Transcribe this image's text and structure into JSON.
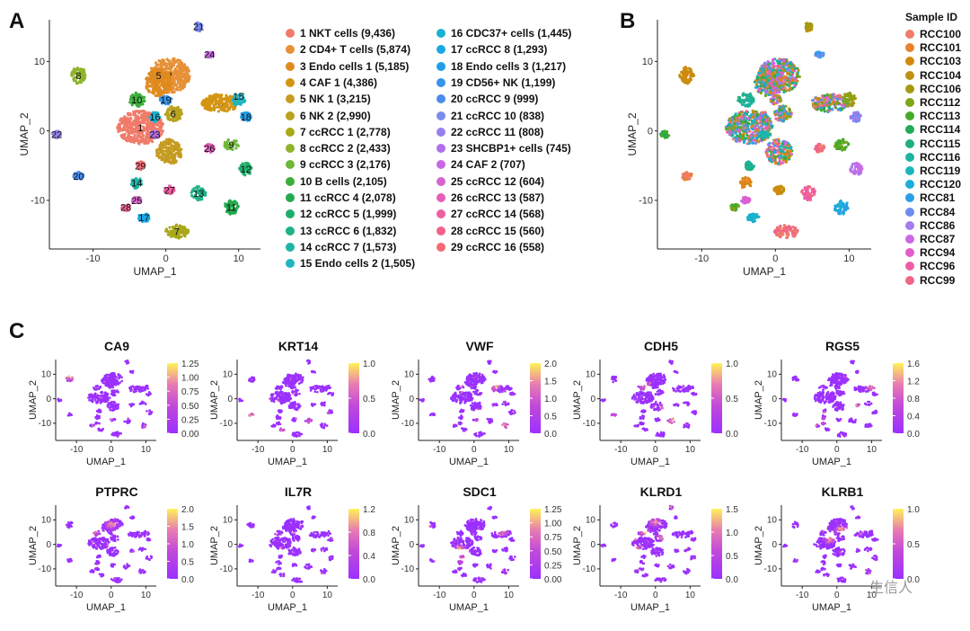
{
  "panels": {
    "a": {
      "letter": "A",
      "xlabel": "UMAP_1",
      "ylabel": "UMAP_2"
    },
    "b": {
      "letter": "B",
      "xlabel": "UMAP_1",
      "ylabel": "UMAP_2",
      "legend_title": "Sample ID"
    },
    "c": {
      "letter": "C"
    }
  },
  "chart_data": [
    {
      "type": "scatter",
      "title": "",
      "xlabel": "UMAP_1",
      "ylabel": "UMAP_2",
      "xlim": [
        -16,
        13
      ],
      "ylim": [
        -17,
        16
      ],
      "xticks": [
        "-10",
        "0",
        "10"
      ],
      "yticks": [
        "10",
        "0",
        "-10"
      ],
      "clusters": [
        {
          "id": "1",
          "label": "1 NKT cells (9,436)",
          "color": "#f07b6a",
          "x": -3.5,
          "y": 0.5
        },
        {
          "id": "2",
          "label": "2 CD4+ T cells (5,874)",
          "color": "#e69138",
          "x": 0.5,
          "y": 8
        },
        {
          "id": "3",
          "label": "3 Endo cells 1 (5,185)",
          "color": "#e08a1e",
          "x": 7.5,
          "y": 4
        },
        {
          "id": "4",
          "label": "4 CAF 1 (4,386)",
          "color": "#d49512",
          "x": 0.5,
          "y": -3
        },
        {
          "id": "5",
          "label": "5 NK 1 (3,215)",
          "color": "#c69c20",
          "x": -1,
          "y": 8
        },
        {
          "id": "6",
          "label": "6 NK 2 (2,990)",
          "color": "#b8a21e",
          "x": 1,
          "y": 2.5
        },
        {
          "id": "7",
          "label": "7 ccRCC 1 (2,778)",
          "color": "#a8a81a",
          "x": 1.5,
          "y": -14.5
        },
        {
          "id": "8",
          "label": "8 ccRCC 2 (2,433)",
          "color": "#8fb32a",
          "x": -12,
          "y": 8
        },
        {
          "id": "9",
          "label": "9 ccRCC 3 (2,176)",
          "color": "#6fb73a",
          "x": 9,
          "y": -2
        },
        {
          "id": "10",
          "label": "10 B cells (2,105)",
          "color": "#3aae3a",
          "x": -4,
          "y": 4.5
        },
        {
          "id": "11",
          "label": "11 ccRCC 4 (2,078)",
          "color": "#22aa4e",
          "x": 9,
          "y": -11
        },
        {
          "id": "12",
          "label": "12 ccRCC 5 (1,999)",
          "color": "#1fae6a",
          "x": 11,
          "y": -5.5
        },
        {
          "id": "13",
          "label": "13 ccRCC 6 (1,832)",
          "color": "#1eb289",
          "x": 4.5,
          "y": -9
        },
        {
          "id": "14",
          "label": "14 ccRCC 7 (1,573)",
          "color": "#1eb5a5",
          "x": -4,
          "y": -7.5
        },
        {
          "id": "15",
          "label": "15 Endo cells 2 (1,505)",
          "color": "#1eb5c0",
          "x": 10,
          "y": 5
        },
        {
          "id": "16",
          "label": "16 CDC37+ cells (1,445)",
          "color": "#1ab2d4",
          "x": -1.5,
          "y": 2
        },
        {
          "id": "17",
          "label": "17 ccRCC 8 (1,293)",
          "color": "#1aa8e2",
          "x": -3,
          "y": -12.5
        },
        {
          "id": "18",
          "label": "18 Endo cells 3 (1,217)",
          "color": "#209ee8",
          "x": 11,
          "y": 2
        },
        {
          "id": "19",
          "label": "19 CD56+ NK (1,199)",
          "color": "#3594ec",
          "x": 0,
          "y": 4.5
        },
        {
          "id": "20",
          "label": "20 ccRCC 9 (999)",
          "color": "#4a8cee",
          "x": -12,
          "y": -6.5
        },
        {
          "id": "21",
          "label": "21 ccRCC 10 (838)",
          "color": "#7a8cef",
          "x": 4.5,
          "y": 15
        },
        {
          "id": "22",
          "label": "22 ccRCC 11 (808)",
          "color": "#9580ee",
          "x": -15,
          "y": -0.5
        },
        {
          "id": "23",
          "label": "23 SHCBP1+ cells (745)",
          "color": "#b070ea",
          "x": -1.5,
          "y": -0.5
        },
        {
          "id": "24",
          "label": "24 CAF 2 (707)",
          "color": "#c868e2",
          "x": 6,
          "y": 11
        },
        {
          "id": "25",
          "label": "25 ccRCC 12 (604)",
          "color": "#d862d0",
          "x": -4,
          "y": -10
        },
        {
          "id": "26",
          "label": "26 ccRCC 13 (587)",
          "color": "#e45eba",
          "x": 6,
          "y": -2.5
        },
        {
          "id": "27",
          "label": "27 ccRCC 14 (568)",
          "color": "#ee5ea2",
          "x": 0.5,
          "y": -8.5
        },
        {
          "id": "28",
          "label": "28 ccRCC 15 (560)",
          "color": "#f2618a",
          "x": -5.5,
          "y": -11
        },
        {
          "id": "29",
          "label": "29 ccRCC 16 (558)",
          "color": "#f56a74",
          "x": -3.5,
          "y": -5
        }
      ]
    },
    {
      "type": "scatter",
      "title": "",
      "xlabel": "UMAP_1",
      "ylabel": "UMAP_2",
      "xlim": [
        -16,
        13
      ],
      "ylim": [
        -17,
        16
      ],
      "xticks": [
        "-10",
        "0",
        "10"
      ],
      "yticks": [
        "10",
        "0",
        "-10"
      ],
      "legend_title": "Sample ID",
      "samples": [
        {
          "name": "RCC100",
          "color": "#f07b6a"
        },
        {
          "name": "RCC101",
          "color": "#e8822a"
        },
        {
          "name": "RCC103",
          "color": "#d4890e"
        },
        {
          "name": "RCC104",
          "color": "#bd9210"
        },
        {
          "name": "RCC106",
          "color": "#a39a12"
        },
        {
          "name": "RCC112",
          "color": "#7fa618"
        },
        {
          "name": "RCC113",
          "color": "#45aa2a"
        },
        {
          "name": "RCC114",
          "color": "#22ab58"
        },
        {
          "name": "RCC115",
          "color": "#1fae80"
        },
        {
          "name": "RCC116",
          "color": "#1eb2a0"
        },
        {
          "name": "RCC119",
          "color": "#1eb4bf"
        },
        {
          "name": "RCC120",
          "color": "#1aaed8"
        },
        {
          "name": "RCC81",
          "color": "#2a9ee8"
        },
        {
          "name": "RCC84",
          "color": "#6d8cef"
        },
        {
          "name": "RCC86",
          "color": "#a57bee"
        },
        {
          "name": "RCC87",
          "color": "#cc68e4"
        },
        {
          "name": "RCC94",
          "color": "#e25ccc"
        },
        {
          "name": "RCC96",
          "color": "#ee5ca8"
        },
        {
          "name": "RCC99",
          "color": "#f2658a"
        }
      ]
    },
    {
      "type": "scatter",
      "feature_plots": [
        {
          "gene": "CA9",
          "scale": [
            "1.25",
            "1.00",
            "0.75",
            "0.50",
            "0.25",
            "0.00"
          ],
          "hot": [
            [
              -9,
              -12
            ],
            [
              10,
              -13
            ],
            [
              -12,
              9
            ],
            [
              4,
              -7
            ],
            [
              -13,
              1
            ],
            [
              10,
              9
            ]
          ],
          "max": 1.25
        },
        {
          "gene": "KRT14",
          "scale": [
            "1.0",
            "0.5",
            "0.0"
          ],
          "hot": [
            [
              -2,
              -13
            ],
            [
              9,
              -6
            ],
            [
              8,
              1
            ],
            [
              -12,
              -7
            ],
            [
              5,
              -10
            ],
            [
              10,
              8
            ]
          ],
          "max": 1.0
        },
        {
          "gene": "VWF",
          "scale": [
            "2.0",
            "1.5",
            "1.0",
            "0.5",
            "0.0"
          ],
          "hot": [
            [
              -11,
              -2
            ],
            [
              -6,
              -9
            ],
            [
              2,
              -9
            ],
            [
              5,
              -4
            ],
            [
              9,
              -11
            ],
            [
              6,
              5
            ],
            [
              10,
              0
            ],
            [
              -9,
              6
            ]
          ],
          "max": 2.0
        },
        {
          "gene": "CDH5",
          "scale": [
            "1.0",
            "0.5",
            "0.0"
          ],
          "hot": [
            [
              -9,
              0
            ],
            [
              -12,
              -8
            ],
            [
              5,
              -9
            ],
            [
              -3,
              5
            ],
            [
              3,
              -4
            ],
            [
              4,
              2
            ]
          ],
          "max": 1.0
        },
        {
          "gene": "RGS5",
          "scale": [
            "1.6",
            "1.2",
            "0.8",
            "0.4",
            "0.0"
          ],
          "hot": [
            [
              -5,
              -9
            ],
            [
              -10,
              -10
            ],
            [
              8,
              1
            ],
            [
              10,
              5
            ],
            [
              5,
              -3
            ]
          ],
          "max": 1.6
        },
        {
          "gene": "PTPRC",
          "scale": [
            "2.0",
            "1.5",
            "1.0",
            "0.5",
            "0.0"
          ],
          "hot": [
            [
              -5,
              5
            ],
            [
              0,
              8
            ],
            [
              -3,
              10
            ],
            [
              1,
              12
            ],
            [
              -8,
              3
            ],
            [
              2,
              5
            ]
          ],
          "max": 2.0
        },
        {
          "gene": "IL7R",
          "scale": [
            "1.2",
            "0.8",
            "0.4",
            "0.0"
          ],
          "hot": [
            [
              -9,
              3
            ],
            [
              -6,
              5
            ],
            [
              -8,
              -3
            ],
            [
              4,
              -5
            ]
          ],
          "max": 1.2
        },
        {
          "gene": "SDC1",
          "scale": [
            "1.25",
            "1.00",
            "0.75",
            "0.50",
            "0.25",
            "0.00"
          ],
          "hot": [
            [
              -7,
              4
            ],
            [
              -4,
              -2
            ],
            [
              8,
              5
            ],
            [
              -3,
              -6
            ]
          ],
          "max": 1.25
        },
        {
          "gene": "KLRD1",
          "scale": [
            "1.5",
            "1.0",
            "0.5",
            "0.0"
          ],
          "hot": [
            [
              -7,
              3
            ],
            [
              -3,
              5
            ],
            [
              2,
              3
            ],
            [
              -6,
              -2
            ],
            [
              0,
              9
            ]
          ],
          "max": 1.5
        },
        {
          "gene": "KLRB1",
          "scale": [
            "1.0",
            "0.5",
            "0.0"
          ],
          "hot": [
            [
              -8,
              4
            ],
            [
              -5,
              7
            ],
            [
              -2,
              2
            ],
            [
              1,
              6
            ]
          ],
          "max": 1.0
        }
      ],
      "xlabel": "UMAP_1",
      "ylabel": "UMAP_2",
      "xticks": [
        "-10",
        "0",
        "10"
      ],
      "yticks": [
        "10",
        "0",
        "-10"
      ]
    }
  ],
  "watermark": "生信人",
  "colors": {
    "low": "#9b30ff",
    "high": "#ffee55"
  }
}
